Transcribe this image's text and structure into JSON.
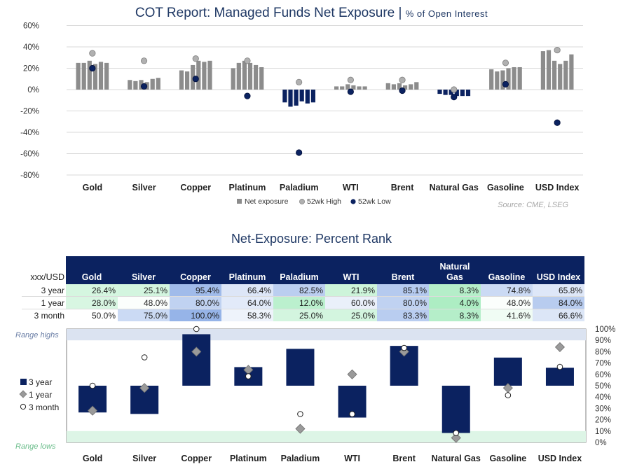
{
  "top_chart": {
    "title": "COT Report: Managed Funds Net Exposure",
    "subtitle": "% of Open Interest",
    "source": "Source: CME, LSEG"
  },
  "rank_section": {
    "title": "Net-Exposure: Percent Rank",
    "corner_label": "xxx/USD"
  },
  "colors": {
    "navy": "#0b2260",
    "bar_gray": "#8c8c8c",
    "high_gray": "#a6a6a6",
    "green_band": "#ddf5e6",
    "blue_band": "#dbe3f1"
  },
  "chart_data": [
    {
      "type": "bar",
      "title": "COT Report: Managed Funds Net Exposure",
      "subtitle": "% of Open Interest",
      "categories": [
        "Gold",
        "Silver",
        "Copper",
        "Platinum",
        "Paladium",
        "WTI",
        "Brent",
        "Natural Gas",
        "Gasoline",
        "USD Index"
      ],
      "yticks": [
        60,
        40,
        20,
        0,
        -20,
        -40,
        -60,
        -80
      ],
      "ytick_format": "percent",
      "ylim": [
        -80,
        60
      ],
      "bars_per_category": 6,
      "series": [
        {
          "name": "Net exposure",
          "kind": "bar",
          "values": [
            [
              25,
              25,
              27,
              24,
              26,
              25
            ],
            [
              9,
              8,
              9,
              7,
              10,
              11
            ],
            [
              18,
              17,
              23,
              27,
              26,
              27
            ],
            [
              20,
              25,
              27,
              25,
              23,
              21
            ],
            [
              -12,
              -16,
              -15,
              -11,
              -13,
              -12
            ],
            [
              3,
              3,
              5,
              4,
              3,
              3
            ],
            [
              6,
              5,
              6,
              4,
              5,
              7
            ],
            [
              -4,
              -5,
              -5,
              -6,
              -6,
              -6
            ],
            [
              19,
              17,
              18,
              20,
              21,
              21
            ],
            [
              36,
              37,
              27,
              24,
              27,
              33
            ]
          ]
        },
        {
          "name": "52wk High",
          "kind": "point",
          "values": [
            34,
            27,
            29,
            27,
            7,
            9,
            9,
            0,
            25,
            37
          ]
        },
        {
          "name": "52wk Low",
          "kind": "point",
          "values": [
            20,
            3,
            10,
            -6,
            -59,
            -2,
            -1,
            -7,
            5,
            -31
          ]
        }
      ],
      "legend": [
        "Net exposure",
        "52wk High",
        "52wk Low"
      ],
      "legend_position": "bottom"
    },
    {
      "type": "table",
      "title": "Net-Exposure: Percent Rank",
      "columns": [
        "Gold",
        "Silver",
        "Copper",
        "Platinum",
        "Paladium",
        "WTI",
        "Brent",
        "Natural Gas",
        "Gasoline",
        "USD Index"
      ],
      "rows": [
        {
          "label": "3 year",
          "values": [
            "26.4%",
            "25.1%",
            "95.4%",
            "66.4%",
            "82.5%",
            "21.9%",
            "85.1%",
            "8.3%",
            "74.8%",
            "65.8%"
          ]
        },
        {
          "label": "1 year",
          "values": [
            "28.0%",
            "48.0%",
            "80.0%",
            "64.0%",
            "12.0%",
            "60.0%",
            "80.0%",
            "4.0%",
            "48.0%",
            "84.0%"
          ]
        },
        {
          "label": "3 month",
          "values": [
            "50.0%",
            "75.0%",
            "100.0%",
            "58.3%",
            "25.0%",
            "25.0%",
            "83.3%",
            "8.3%",
            "41.6%",
            "66.6%"
          ]
        }
      ]
    },
    {
      "type": "bar",
      "categories": [
        "Gold",
        "Silver",
        "Copper",
        "Platinum",
        "Paladium",
        "WTI",
        "Brent",
        "Natural Gas",
        "Gasoline",
        "USD Index"
      ],
      "baseline": 50,
      "ylim": [
        0,
        100
      ],
      "yticks": [
        "100%",
        "90%",
        "80%",
        "70%",
        "60%",
        "50%",
        "40%",
        "30%",
        "20%",
        "10%",
        "0%"
      ],
      "band_labels": {
        "high": "Range highs",
        "low": "Range lows"
      },
      "series": [
        {
          "name": "3 year",
          "kind": "bar",
          "values": [
            26.4,
            25.1,
            95.4,
            66.4,
            82.5,
            21.9,
            85.1,
            8.3,
            74.8,
            65.8
          ]
        },
        {
          "name": "1 year",
          "kind": "diamond",
          "values": [
            28.0,
            48.0,
            80.0,
            64.0,
            12.0,
            60.0,
            80.0,
            4.0,
            48.0,
            84.0
          ]
        },
        {
          "name": "3 month",
          "kind": "circle",
          "values": [
            50.0,
            75.0,
            100.0,
            58.3,
            25.0,
            25.0,
            83.3,
            8.3,
            41.6,
            66.6
          ]
        }
      ],
      "legend": [
        "3 year",
        "1 year",
        "3 month"
      ],
      "legend_position": "left"
    }
  ]
}
